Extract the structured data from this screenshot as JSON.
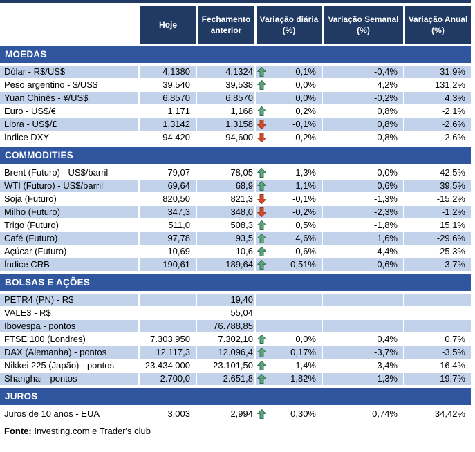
{
  "colors": {
    "header_bg": "#203A64",
    "band_bg": "#3056A0",
    "row_shaded_bg": "#C2D2EB",
    "up_arrow": "#5BA578",
    "up_arrow_border": "#2F6B50",
    "down_arrow": "#D2492B",
    "down_arrow_border": "#9E3414"
  },
  "table": {
    "columns": [
      "Hoje",
      "Fechamento anterior",
      "Variação diária (%)",
      "Variação Semanal (%)",
      "Variação Anual (%)"
    ]
  },
  "sections": [
    {
      "title": "MOEDAS",
      "rows": [
        {
          "label": "Dólar - R$/US$",
          "hoje": "4,1380",
          "fechamento": "4,1324",
          "trend": "up",
          "daily": "0,1%",
          "weekly": "-0,4%",
          "annual": "31,9%",
          "shaded": true
        },
        {
          "label": "Peso argentino - $/US$",
          "hoje": "39,540",
          "fechamento": "39,538",
          "trend": "up",
          "daily": "0,0%",
          "weekly": "4,2%",
          "annual": "131,2%",
          "shaded": false
        },
        {
          "label": "Yuan Chinês - ¥/US$",
          "hoje": "6,8570",
          "fechamento": "6,8570",
          "trend": "none",
          "daily": "0,0%",
          "weekly": "-0,2%",
          "annual": "4,3%",
          "shaded": true
        },
        {
          "label": "Euro - US$/€",
          "hoje": "1,171",
          "fechamento": "1,168",
          "trend": "up",
          "daily": "0,2%",
          "weekly": "0,8%",
          "annual": "-2,1%",
          "shaded": false
        },
        {
          "label": "Libra - US$/£",
          "hoje": "1,3142",
          "fechamento": "1,3158",
          "trend": "down",
          "daily": "-0,1%",
          "weekly": "0,8%",
          "annual": "-2,6%",
          "shaded": true
        },
        {
          "label": "Índice DXY",
          "hoje": "94,420",
          "fechamento": "94,600",
          "trend": "down",
          "daily": "-0,2%",
          "weekly": "-0,8%",
          "annual": "2,6%",
          "shaded": false
        }
      ]
    },
    {
      "title": "COMMODITIES",
      "rows": [
        {
          "label": "Brent (Futuro) - US$/barril",
          "hoje": "79,07",
          "fechamento": "78,05",
          "trend": "up",
          "daily": "1,3%",
          "weekly": "0,0%",
          "annual": "42,5%",
          "shaded": false
        },
        {
          "label": "WTI (Futuro) - US$/barril",
          "hoje": "69,64",
          "fechamento": "68,9",
          "trend": "up",
          "daily": "1,1%",
          "weekly": "0,6%",
          "annual": "39,5%",
          "shaded": true
        },
        {
          "label": "Soja (Futuro)",
          "hoje": "820,50",
          "fechamento": "821,3",
          "trend": "down",
          "daily": "-0,1%",
          "weekly": "-1,3%",
          "annual": "-15,2%",
          "shaded": false
        },
        {
          "label": "Milho (Futuro)",
          "hoje": "347,3",
          "fechamento": "348,0",
          "trend": "down",
          "daily": "-0,2%",
          "weekly": "-2,3%",
          "annual": "-1,2%",
          "shaded": true
        },
        {
          "label": "Trigo (Futuro)",
          "hoje": "511,0",
          "fechamento": "508,3",
          "trend": "up",
          "daily": "0,5%",
          "weekly": "-1,8%",
          "annual": "15,1%",
          "shaded": false
        },
        {
          "label": "Café (Futuro)",
          "hoje": "97,78",
          "fechamento": "93,5",
          "trend": "up",
          "daily": "4,6%",
          "weekly": "1,6%",
          "annual": "-29,6%",
          "shaded": true
        },
        {
          "label": "Açúcar (Futuro)",
          "hoje": "10,69",
          "fechamento": "10,6",
          "trend": "up",
          "daily": "0,6%",
          "weekly": "-4,4%",
          "annual": "-25,3%",
          "shaded": false
        },
        {
          "label": "Índice CRB",
          "hoje": "190,61",
          "fechamento": "189,64",
          "trend": "up",
          "daily": "0,51%",
          "weekly": "-0,6%",
          "annual": "3,7%",
          "shaded": true
        }
      ]
    },
    {
      "title": "BOLSAS E AÇÕES",
      "rows": [
        {
          "label": "PETR4 (PN) - R$",
          "hoje": "",
          "fechamento": "19,40",
          "trend": "none",
          "daily": "",
          "weekly": "",
          "annual": "",
          "shaded": true
        },
        {
          "label": "VALE3 - R$",
          "hoje": "",
          "fechamento": "55,04",
          "trend": "none",
          "daily": "",
          "weekly": "",
          "annual": "",
          "shaded": false
        },
        {
          "label": "Ibovespa - pontos",
          "hoje": "",
          "fechamento": "76.788,85",
          "trend": "none",
          "daily": "",
          "weekly": "",
          "annual": "",
          "shaded": true
        },
        {
          "label": "FTSE 100 (Londres)",
          "hoje": "7.303,950",
          "fechamento": "7.302,10",
          "trend": "up",
          "daily": "0,0%",
          "weekly": "0,4%",
          "annual": "0,7%",
          "shaded": false
        },
        {
          "label": "DAX (Alemanha) - pontos",
          "hoje": "12.117,3",
          "fechamento": "12.096,4",
          "trend": "up",
          "daily": "0,17%",
          "weekly": "-3,7%",
          "annual": "-3,5%",
          "shaded": true
        },
        {
          "label": "Nikkei 225 (Japão) - pontos",
          "hoje": "23.434,000",
          "fechamento": "23.101,50",
          "trend": "up",
          "daily": "1,4%",
          "weekly": "3,4%",
          "annual": "16,4%",
          "shaded": false
        },
        {
          "label": "Shanghai - pontos",
          "hoje": "2.700,0",
          "fechamento": "2.651,8",
          "trend": "up",
          "daily": "1,82%",
          "weekly": "1,3%",
          "annual": "-19,7%",
          "shaded": true
        }
      ]
    },
    {
      "title": "JUROS",
      "rows": [
        {
          "label": "Juros de 10 anos - EUA",
          "hoje": "3,003",
          "fechamento": "2,994",
          "trend": "up",
          "daily": "0,30%",
          "weekly": "0,74%",
          "annual": "34,42%",
          "shaded": false
        }
      ]
    }
  ],
  "footer": {
    "source_label": "Fonte:",
    "source_text": " Investing.com e Trader's club"
  }
}
